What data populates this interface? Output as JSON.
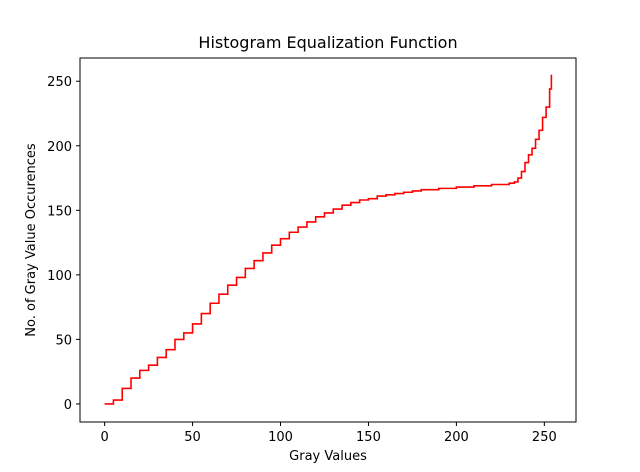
{
  "chart_data": {
    "type": "line",
    "title": "Histogram Equalization Function",
    "xlabel": "Gray Values",
    "ylabel": "No. of Gray Value Occurences",
    "xlim": [
      -14,
      268
    ],
    "ylim": [
      -14,
      268
    ],
    "xticks": [
      0,
      50,
      100,
      150,
      200,
      250
    ],
    "yticks": [
      0,
      50,
      100,
      150,
      200,
      250
    ],
    "grid": false,
    "step": true,
    "series": [
      {
        "color": "#ff0000",
        "x": [
          0,
          5,
          10,
          15,
          20,
          25,
          30,
          35,
          40,
          45,
          50,
          55,
          60,
          65,
          70,
          75,
          80,
          85,
          90,
          95,
          100,
          105,
          110,
          115,
          120,
          125,
          130,
          135,
          140,
          145,
          150,
          155,
          160,
          165,
          170,
          175,
          180,
          185,
          190,
          195,
          200,
          205,
          210,
          215,
          220,
          225,
          230,
          233,
          235,
          237,
          239,
          241,
          243,
          245,
          247,
          249,
          251,
          253,
          254
        ],
        "y": [
          0,
          3,
          12,
          20,
          26,
          30,
          36,
          42,
          50,
          55,
          62,
          70,
          78,
          85,
          92,
          98,
          105,
          111,
          117,
          123,
          128,
          133,
          137,
          141,
          145,
          148,
          151,
          154,
          156,
          158,
          159,
          161,
          162,
          163,
          164,
          165,
          166,
          166,
          167,
          167,
          168,
          168,
          169,
          169,
          170,
          170,
          171,
          172,
          175,
          180,
          187,
          193,
          198,
          205,
          212,
          222,
          230,
          244,
          255
        ]
      }
    ]
  }
}
